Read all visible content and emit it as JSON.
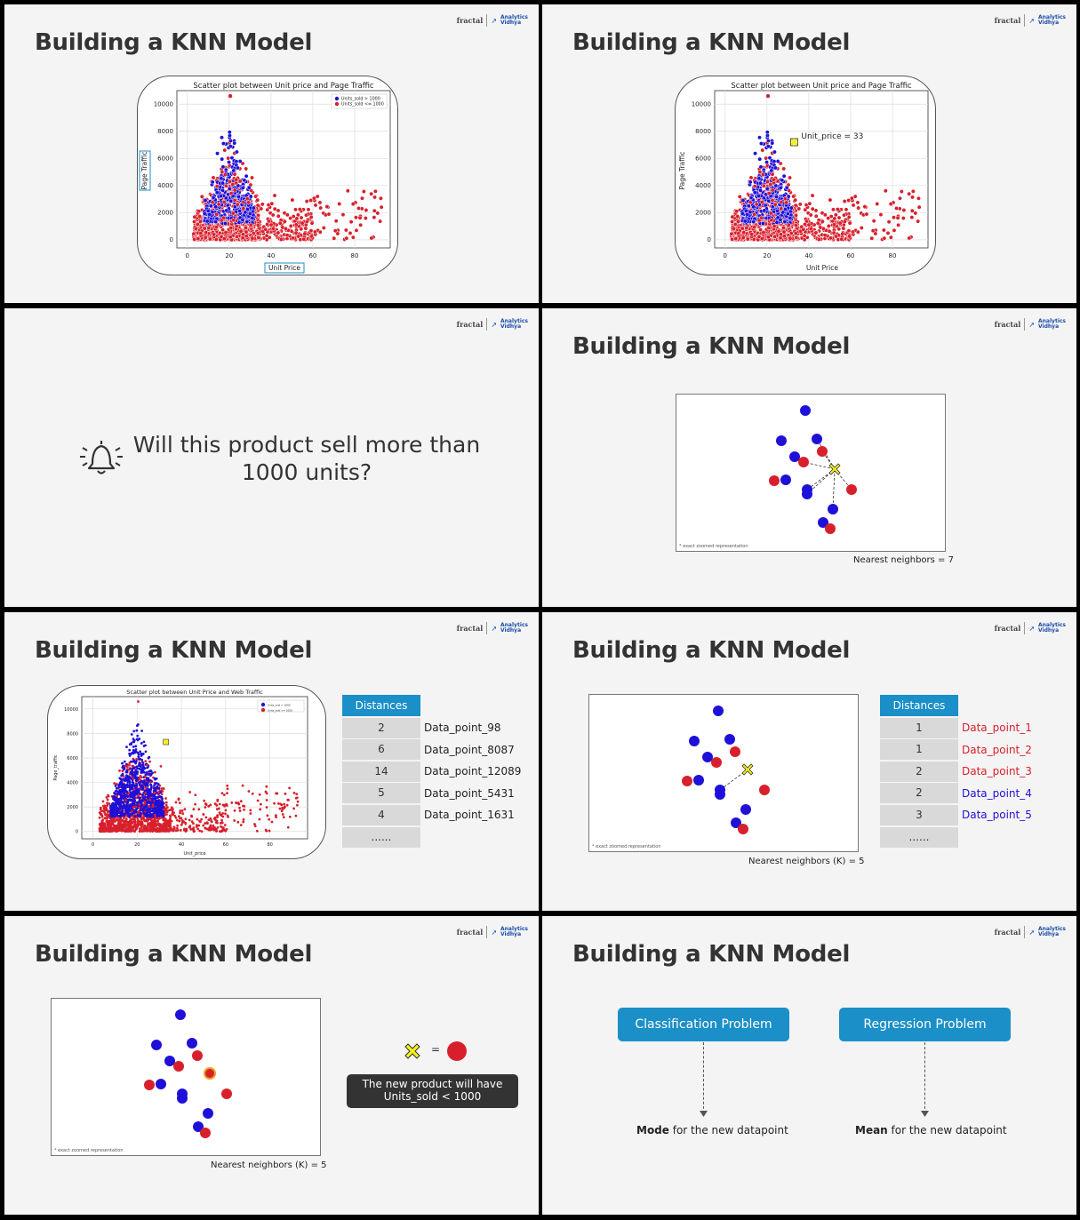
{
  "logo": {
    "left": "fractal",
    "right_line1": "Analytics",
    "right_line2": "Vidhya"
  },
  "colors": {
    "accent_blue": "#1b8fc7",
    "point_blue": "#1f10d8",
    "point_red": "#d8202c",
    "background": "#f4f4f4"
  },
  "slides": [
    {
      "title": "Building a KNN Model",
      "chart_data": {
        "type": "scatter",
        "title": "Scatter plot between Unit price and Page Traffic",
        "xlabel": "Unit Price",
        "ylabel": "Page Traffic",
        "xlim": [
          -5,
          97
        ],
        "ylim": [
          -600,
          11000
        ],
        "xticks": [
          "0",
          "20",
          "40",
          "60",
          "80"
        ],
        "yticks": [
          "0",
          "2000",
          "4000",
          "6000",
          "8000",
          "10000"
        ],
        "legend": [
          "Units_sold > 1000",
          "Units_sold <= 1000"
        ],
        "legend_position": "top-right",
        "series": [
          {
            "name": "Units_sold > 1000",
            "x_range": [
              3,
              35
            ],
            "y_range": [
              0,
              10000
            ]
          },
          {
            "name": "Units_sold <= 1000",
            "x_range": [
              0,
              95
            ],
            "y_range": [
              0,
              10600
            ]
          }
        ]
      }
    },
    {
      "title": "Building a KNN Model",
      "annotation": "Unit_price = 33",
      "chart_data": {
        "type": "scatter",
        "title": "Scatter plot between Unit price and Page Traffic",
        "xlabel": "Unit Price",
        "ylabel": "Page Traffic",
        "xlim": [
          -5,
          97
        ],
        "ylim": [
          -600,
          11000
        ],
        "xticks": [
          "0",
          "20",
          "40",
          "60",
          "80"
        ],
        "yticks": [
          "0",
          "2000",
          "4000",
          "6000",
          "8000",
          "10000"
        ],
        "highlight_point": {
          "x": 33,
          "y": 7200
        }
      }
    },
    {
      "question": "Will this product sell more than 1000 units?"
    },
    {
      "title": "Building a KNN Model",
      "note": "* exact zoomed representation",
      "caption": "Nearest neighbors = 7"
    },
    {
      "title": "Building a KNN Model",
      "chart_data": {
        "type": "scatter",
        "title": "Scatter plot between Unit Price and Web Traffic",
        "xlabel": "Unit_price",
        "ylabel": "Page_traffic",
        "xticks": [
          "0",
          "20",
          "40",
          "60",
          "80"
        ],
        "yticks": [
          "0",
          "2000",
          "4000",
          "6000",
          "8000",
          "10000"
        ],
        "legend": [
          "Units_sold > 1000",
          "Units_sold <= 1000"
        ]
      },
      "table": {
        "header": "Distances",
        "rows": [
          {
            "value": "2",
            "label": "Data_point_98"
          },
          {
            "value": "6",
            "label": "Data_point_8087"
          },
          {
            "value": "14",
            "label": "Data_point_12089"
          },
          {
            "value": "5",
            "label": "Data_point_5431"
          },
          {
            "value": "4",
            "label": "Data_point_1631"
          },
          {
            "value": "......",
            "label": ""
          }
        ]
      }
    },
    {
      "title": "Building a KNN Model",
      "note": "* exact zoomed representation",
      "caption": "Nearest neighbors (K) = 5",
      "table": {
        "header": "Distances",
        "rows": [
          {
            "value": "1",
            "label": "Data_point_1"
          },
          {
            "value": "1",
            "label": "Data_point_2"
          },
          {
            "value": "2",
            "label": "Data_point_3"
          },
          {
            "value": "2",
            "label": "Data_point_4"
          },
          {
            "value": "3",
            "label": "Data_point_5"
          },
          {
            "value": "......",
            "label": ""
          }
        ]
      }
    },
    {
      "title": "Building a KNN Model",
      "note": "* exact zoomed representation",
      "caption": "Nearest neighbors (K) = 5",
      "equals": "=",
      "result_line1": "The new product will have",
      "result_line2": "Units_sold < 1000"
    },
    {
      "title": "Building a KNN Model",
      "left_box": "Classification Problem",
      "right_box": "Regression Problem",
      "left_bold": "Mode",
      "left_rest": " for the new datapoint",
      "right_bold": "Mean",
      "right_rest": " for the new datapoint"
    }
  ]
}
